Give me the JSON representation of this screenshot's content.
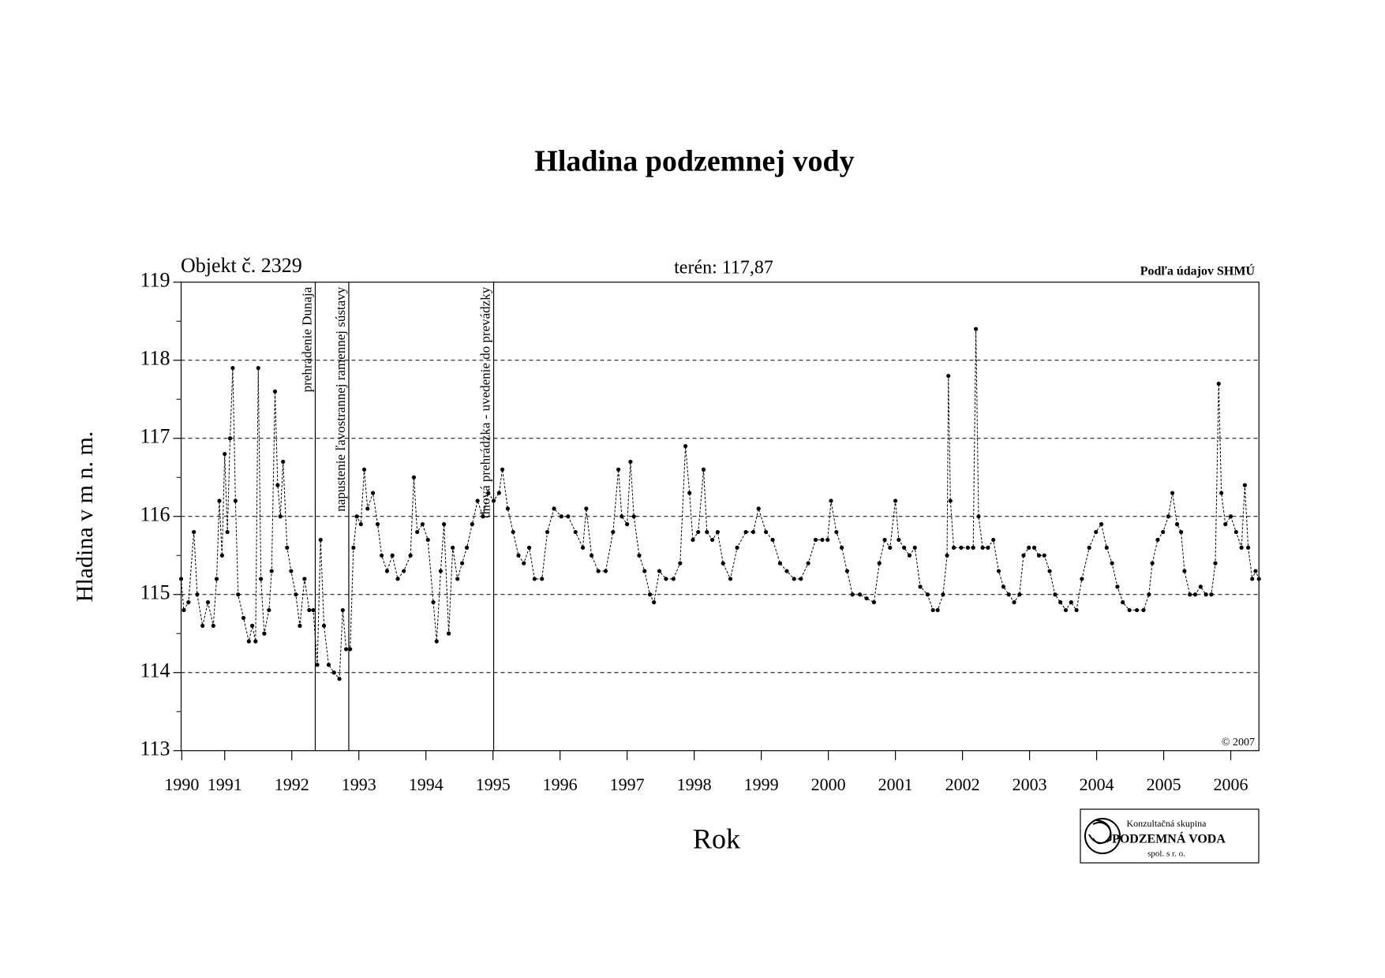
{
  "chart_data": {
    "type": "line",
    "title": "Hladina podzemnej vody",
    "object_label": "Objekt č. 2329",
    "terrain_label": "terén: 117,87",
    "source_label": "Podľa údajov SHMÚ",
    "copyright": "© 2007",
    "xlabel": "Rok",
    "ylabel": "Hladina v m n. m.",
    "logo": {
      "line1": "Konzultačná skupina",
      "line2": "PODZEMNÁ VODA",
      "line3": "spol. s r. o."
    },
    "ylim": [
      113,
      119
    ],
    "yticks": [
      113,
      114,
      115,
      116,
      117,
      118,
      119
    ],
    "yminor_ticks": [
      113.5,
      114.5,
      115.5,
      116.5,
      117.5,
      118.5
    ],
    "xlim": [
      1990.85,
      2006.92
    ],
    "xticks": [
      {
        "value": 1990.86,
        "label": "1990"
      },
      {
        "value": 1991.5,
        "label": "1991"
      },
      {
        "value": 1992.5,
        "label": "1992"
      },
      {
        "value": 1993.5,
        "label": "1993"
      },
      {
        "value": 1994.5,
        "label": "1994"
      },
      {
        "value": 1995.5,
        "label": "1995"
      },
      {
        "value": 1996.5,
        "label": "1996"
      },
      {
        "value": 1997.5,
        "label": "1997"
      },
      {
        "value": 1998.5,
        "label": "1998"
      },
      {
        "value": 1999.5,
        "label": "1999"
      },
      {
        "value": 2000.5,
        "label": "2000"
      },
      {
        "value": 2001.5,
        "label": "2001"
      },
      {
        "value": 2002.5,
        "label": "2002"
      },
      {
        "value": 2003.5,
        "label": "2003"
      },
      {
        "value": 2004.5,
        "label": "2004"
      },
      {
        "value": 2005.5,
        "label": "2005"
      },
      {
        "value": 2006.5,
        "label": "2006"
      }
    ],
    "grid": true,
    "color": "#000000",
    "annotations": [
      {
        "x": 1992.85,
        "label": "prehradenie Dunaja"
      },
      {
        "x": 1993.35,
        "label": "napustenie ľavostrannej ramennej sústavy"
      },
      {
        "x": 1995.51,
        "label": "dnová prehrádzka - uvedenie do prevádzky"
      }
    ],
    "x": [
      1990.85,
      1990.89,
      1990.96,
      1991.04,
      1991.09,
      1991.17,
      1991.25,
      1991.33,
      1991.38,
      1991.42,
      1991.46,
      1991.5,
      1991.54,
      1991.58,
      1991.62,
      1991.66,
      1991.7,
      1991.78,
      1991.86,
      1991.91,
      1991.96,
      1992.0,
      1992.04,
      1992.09,
      1992.16,
      1992.2,
      1992.25,
      1992.29,
      1992.33,
      1992.37,
      1992.43,
      1992.49,
      1992.56,
      1992.62,
      1992.69,
      1992.76,
      1992.82,
      1992.88,
      1992.93,
      1992.98,
      1993.05,
      1993.13,
      1993.21,
      1993.26,
      1993.31,
      1993.37,
      1993.42,
      1993.47,
      1993.53,
      1993.58,
      1993.63,
      1993.71,
      1993.78,
      1993.84,
      1993.92,
      1994.0,
      1994.08,
      1994.17,
      1994.27,
      1994.32,
      1994.37,
      1994.45,
      1994.53,
      1994.61,
      1994.66,
      1994.72,
      1994.77,
      1994.84,
      1994.9,
      1994.97,
      1995.04,
      1995.11,
      1995.19,
      1995.27,
      1995.35,
      1995.43,
      1995.51,
      1995.59,
      1995.64,
      1995.72,
      1995.8,
      1995.88,
      1995.96,
      1996.04,
      1996.12,
      1996.23,
      1996.31,
      1996.41,
      1996.52,
      1996.62,
      1996.73,
      1996.84,
      1996.89,
      1996.97,
      1997.07,
      1997.18,
      1997.29,
      1997.37,
      1997.42,
      1997.5,
      1997.55,
      1997.6,
      1997.68,
      1997.76,
      1997.84,
      1997.9,
      1997.98,
      1998.08,
      1998.19,
      1998.29,
      1998.37,
      1998.43,
      1998.48,
      1998.56,
      1998.64,
      1998.69,
      1998.77,
      1998.85,
      1998.93,
      1999.04,
      1999.14,
      1999.27,
      1999.38,
      1999.46,
      1999.57,
      1999.67,
      1999.78,
      1999.88,
      1999.99,
      2000.09,
      2000.2,
      2000.31,
      2000.41,
      2000.49,
      2000.54,
      2000.62,
      2000.7,
      2000.78,
      2000.86,
      2000.97,
      2001.07,
      2001.18,
      2001.26,
      2001.34,
      2001.42,
      2001.5,
      2001.55,
      2001.63,
      2001.71,
      2001.79,
      2001.87,
      2001.98,
      2002.06,
      2002.13,
      2002.21,
      2002.27,
      2002.29,
      2002.32,
      2002.37,
      2002.48,
      2002.58,
      2002.66,
      2002.7,
      2002.74,
      2002.8,
      2002.88,
      2002.96,
      2003.04,
      2003.11,
      2003.19,
      2003.27,
      2003.35,
      2003.41,
      2003.49,
      2003.57,
      2003.64,
      2003.72,
      2003.8,
      2003.88,
      2003.96,
      2004.04,
      2004.12,
      2004.2,
      2004.28,
      2004.39,
      2004.49,
      2004.57,
      2004.65,
      2004.73,
      2004.81,
      2004.89,
      2004.99,
      2005.1,
      2005.2,
      2005.28,
      2005.33,
      2005.41,
      2005.49,
      2005.57,
      2005.63,
      2005.7,
      2005.76,
      2005.81,
      2005.89,
      2005.97,
      2006.05,
      2006.13,
      2006.21,
      2006.27,
      2006.32,
      2006.36,
      2006.42,
      2006.5,
      2006.58,
      2006.66,
      2006.71,
      2006.76,
      2006.82,
      2006.87,
      2006.92
    ],
    "values": [
      115.2,
      114.8,
      114.9,
      115.8,
      115.0,
      114.6,
      114.9,
      114.6,
      115.2,
      116.2,
      115.5,
      116.8,
      115.8,
      117.0,
      117.9,
      116.2,
      115.0,
      114.7,
      114.4,
      114.6,
      114.4,
      117.9,
      115.2,
      114.5,
      114.8,
      115.3,
      117.6,
      116.4,
      116.0,
      116.7,
      115.6,
      115.3,
      115.0,
      114.6,
      115.2,
      114.8,
      114.8,
      114.1,
      115.7,
      114.6,
      114.1,
      114.0,
      113.92,
      114.8,
      114.3,
      114.3,
      115.6,
      116.0,
      115.9,
      116.6,
      116.1,
      116.3,
      115.9,
      115.5,
      115.3,
      115.5,
      115.2,
      115.3,
      115.5,
      116.5,
      115.8,
      115.9,
      115.7,
      114.9,
      114.4,
      115.3,
      115.9,
      114.5,
      115.6,
      115.2,
      115.4,
      115.6,
      115.9,
      116.2,
      116.0,
      116.3,
      116.2,
      116.3,
      116.6,
      116.1,
      115.8,
      115.5,
      115.4,
      115.6,
      115.2,
      115.2,
      115.8,
      116.1,
      116.0,
      116.0,
      115.8,
      115.6,
      116.1,
      115.5,
      115.3,
      115.3,
      115.8,
      116.6,
      116.0,
      115.9,
      116.7,
      116.0,
      115.5,
      115.3,
      115.0,
      114.9,
      115.3,
      115.2,
      115.2,
      115.4,
      116.9,
      116.3,
      115.7,
      115.8,
      116.6,
      115.8,
      115.7,
      115.8,
      115.4,
      115.2,
      115.6,
      115.8,
      115.8,
      116.1,
      115.8,
      115.7,
      115.4,
      115.3,
      115.2,
      115.2,
      115.4,
      115.7,
      115.7,
      115.7,
      116.2,
      115.8,
      115.6,
      115.3,
      115.0,
      115.0,
      114.95,
      114.9,
      115.4,
      115.7,
      115.6,
      116.2,
      115.7,
      115.6,
      115.5,
      115.6,
      115.1,
      115.0,
      114.8,
      114.8,
      115.0,
      115.5,
      117.8,
      116.2,
      115.6,
      115.6,
      115.6,
      115.6,
      118.4,
      116.0,
      115.6,
      115.6,
      115.7,
      115.3,
      115.1,
      115.0,
      114.9,
      115.0,
      115.5,
      115.6,
      115.6,
      115.5,
      115.5,
      115.3,
      115.0,
      114.9,
      114.8,
      114.9,
      114.8,
      115.2,
      115.6,
      115.8,
      115.9,
      115.6,
      115.4,
      115.1,
      114.9,
      114.8,
      114.8,
      114.8,
      115.0,
      115.4,
      115.7,
      115.8,
      116.0,
      116.3,
      115.9,
      115.8,
      115.3,
      115.0,
      115.0,
      115.1,
      115.0,
      115.0,
      115.4,
      117.7,
      116.3,
      115.9,
      116.0,
      115.8,
      115.6,
      116.4,
      115.6,
      115.2,
      115.3,
      115.2
    ]
  }
}
